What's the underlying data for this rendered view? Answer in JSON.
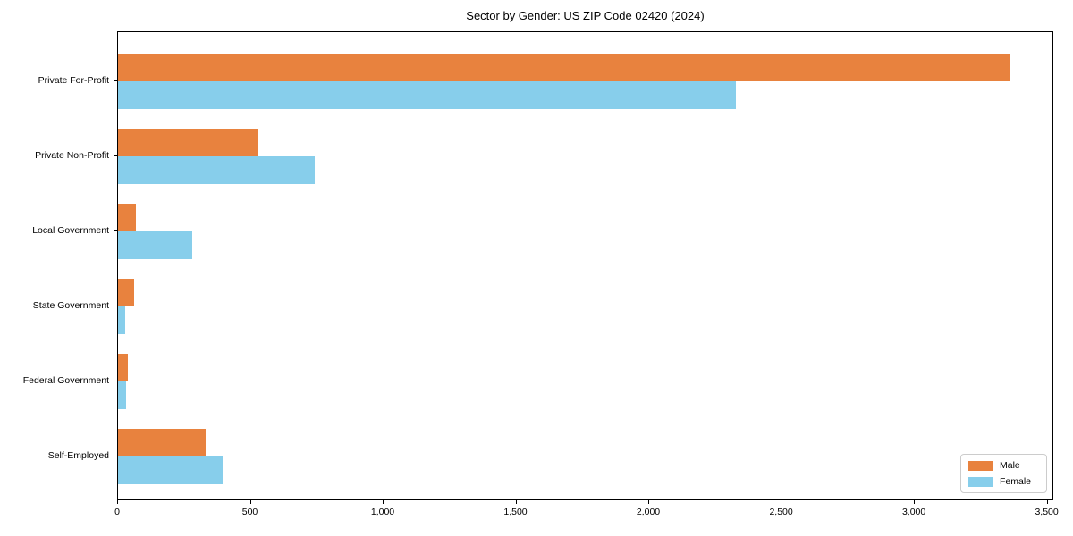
{
  "chart_data": {
    "type": "bar",
    "orientation": "horizontal",
    "title": "Sector by Gender: US ZIP Code 02420 (2024)",
    "categories": [
      "Private For-Profit",
      "Private Non-Profit",
      "Local Government",
      "State Government",
      "Federal Government",
      "Self-Employed"
    ],
    "series": [
      {
        "name": "Male",
        "color": "#E8823E",
        "values": [
          3355,
          530,
          68,
          62,
          37,
          330
        ]
      },
      {
        "name": "Female",
        "color": "#87CEEB",
        "values": [
          2325,
          740,
          280,
          28,
          30,
          395
        ]
      }
    ],
    "xlabel": "",
    "ylabel": "",
    "xlim": [
      0,
      3525
    ],
    "xticks": [
      0,
      500,
      1000,
      1500,
      2000,
      2500,
      3000,
      3500
    ],
    "xtick_labels": [
      "0",
      "500",
      "1,000",
      "1,500",
      "2,000",
      "2,500",
      "3,000",
      "3,500"
    ],
    "grid": false,
    "legend": {
      "position": "lower right",
      "entries": [
        "Male",
        "Female"
      ]
    }
  }
}
